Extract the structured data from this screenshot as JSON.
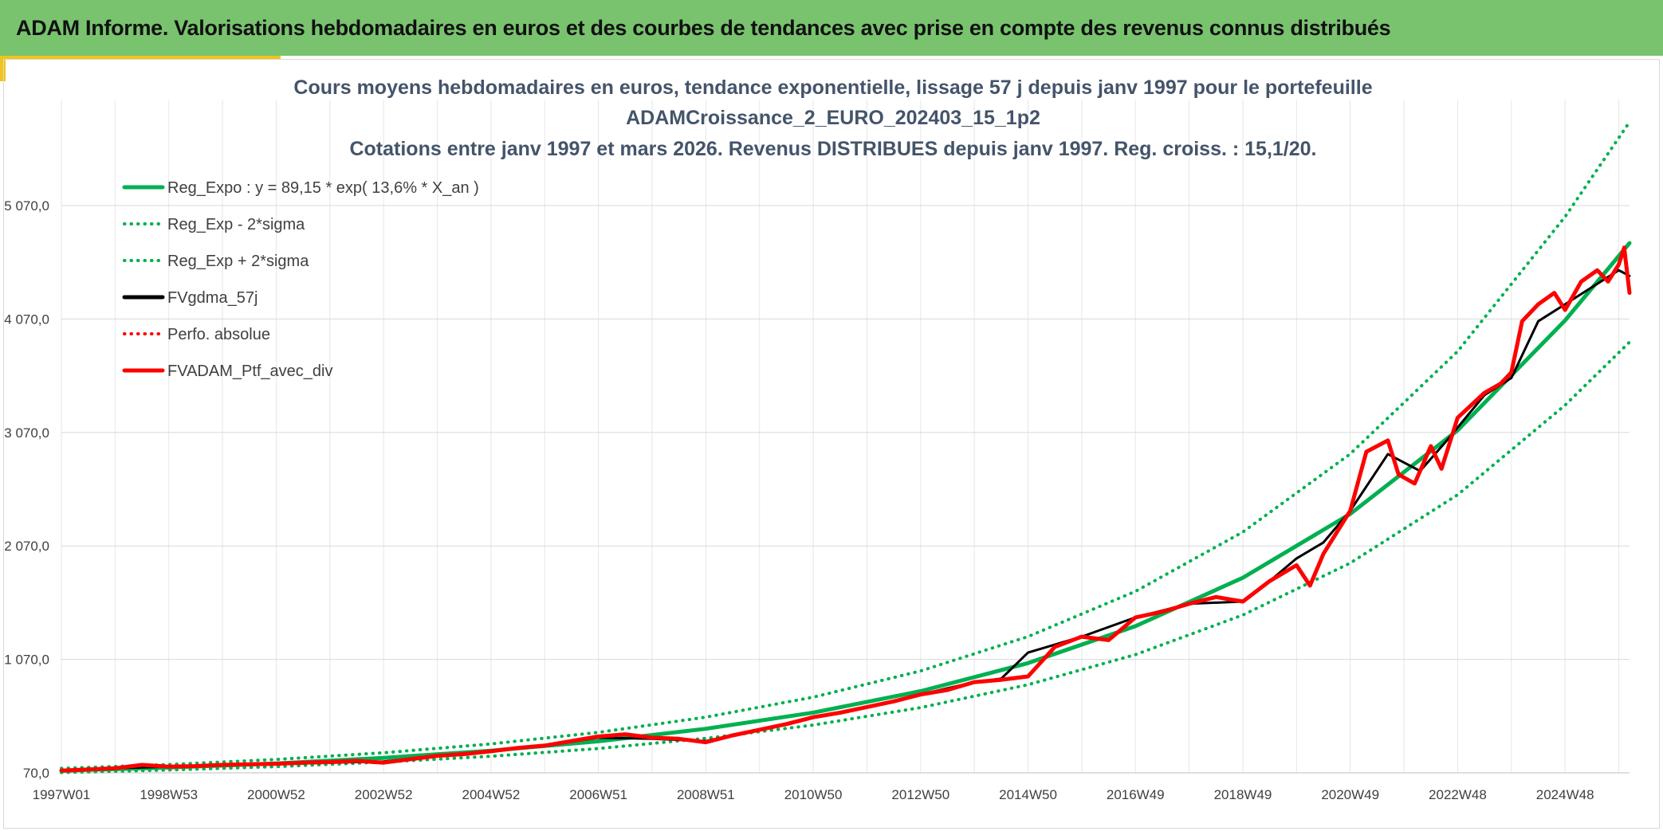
{
  "header": {
    "title": "ADAM Informe. Valorisations hebdomadaires en euros et des courbes de tendances avec prise en compte des revenus connus distribués"
  },
  "colors": {
    "banner": "#79c36f",
    "accent": "#f0c419",
    "reg_expo": "#00b050",
    "sigma": "#00b050",
    "fvgdma": "#000000",
    "perfo": "#ff0000",
    "ptf": "#ff0000"
  },
  "chart_data": {
    "type": "line",
    "title_lines": [
      "Cours moyens hebdomadaires en euros, tendance exponentielle, lissage 57 j depuis janv 1997 pour le portefeuille",
      "ADAMCroissance_2_EURO_202403_15_1p2",
      "Cotations entre janv 1997 et mars 2026. Revenus DISTRIBUES depuis janv 1997. Reg. croiss. : 15,1/20."
    ],
    "x_tick_labels": [
      "1997W01",
      "1998W53",
      "2000W52",
      "2002W52",
      "2004W52",
      "2006W51",
      "2008W51",
      "2010W50",
      "2012W50",
      "2014W50",
      "2016W49",
      "2018W49",
      "2020W49",
      "2022W48",
      "2024W48"
    ],
    "x_tick_years": [
      1997.0,
      1999.0,
      2001.0,
      2003.0,
      2005.0,
      2007.0,
      2009.0,
      2011.0,
      2013.0,
      2015.0,
      2017.0,
      2019.0,
      2021.0,
      2023.0,
      2025.0
    ],
    "xlim": [
      1997.0,
      2026.2
    ],
    "y_ticks": [
      70,
      1070,
      2070,
      3070,
      4070,
      5070
    ],
    "y_tick_labels": [
      "70,0",
      "1 070,0",
      "2 070,0",
      "3 070,0",
      "4 070,0",
      "5 070,0"
    ],
    "ylim": [
      70,
      5070
    ],
    "grid": true,
    "legend_position": "top-left",
    "series": [
      {
        "name": "Reg_Expo : y = 89,15 * exp( 13,6% *  X_an )",
        "style": "solid",
        "color": "#00b050",
        "x": [
          1997.0,
          1999.0,
          2001.0,
          2003.0,
          2005.0,
          2007.0,
          2009.0,
          2011.0,
          2013.0,
          2015.0,
          2017.0,
          2019.0,
          2021.0,
          2023.0,
          2025.0,
          2026.2
        ],
        "y": [
          89,
          117,
          153,
          202,
          265,
          348,
          458,
          601,
          790,
          1037,
          1363,
          1790,
          2352,
          3089,
          4058,
          4739
        ]
      },
      {
        "name": "Reg_Exp - 2*sigma",
        "style": "dotted",
        "color": "#00b050",
        "x": [
          1997.0,
          1999.0,
          2001.0,
          2003.0,
          2005.0,
          2007.0,
          2009.0,
          2011.0,
          2013.0,
          2015.0,
          2017.0,
          2019.0,
          2021.0,
          2023.0,
          2025.0,
          2026.2
        ],
        "y": [
          73,
          95,
          125,
          165,
          216,
          284,
          374,
          491,
          645,
          847,
          1112,
          1461,
          1919,
          2521,
          3311,
          3866
        ]
      },
      {
        "name": "Reg_Exp + 2*sigma",
        "style": "dotted",
        "color": "#00b050",
        "x": [
          1997.0,
          1999.0,
          2001.0,
          2003.0,
          2005.0,
          2007.0,
          2009.0,
          2011.0,
          2013.0,
          2015.0,
          2017.0,
          2019.0,
          2021.0,
          2023.0,
          2025.0,
          2026.2
        ],
        "y": [
          109,
          143,
          188,
          247,
          325,
          427,
          561,
          737,
          968,
          1271,
          1670,
          2193,
          2881,
          3785,
          4972,
          5806
        ]
      },
      {
        "name": "FVgdma_57j",
        "style": "solid",
        "color": "#000000",
        "x": [
          1997.0,
          1998.0,
          1999.0,
          2000.0,
          2001.0,
          2002.0,
          2003.0,
          2004.0,
          2005.0,
          2006.0,
          2007.0,
          2008.0,
          2009.0,
          2010.0,
          2011.0,
          2012.0,
          2013.0,
          2014.0,
          2014.5,
          2015.0,
          2016.0,
          2017.0,
          2018.0,
          2019.0,
          2019.5,
          2020.0,
          2020.5,
          2021.0,
          2021.7,
          2022.3,
          2022.8,
          2023.5,
          2024.0,
          2024.5,
          2025.0,
          2025.5,
          2026.0,
          2026.2
        ],
        "y": [
          90,
          110,
          125,
          140,
          145,
          160,
          170,
          220,
          260,
          310,
          380,
          370,
          350,
          450,
          560,
          650,
          760,
          870,
          900,
          1130,
          1270,
          1440,
          1560,
          1580,
          1760,
          1960,
          2100,
          2380,
          2880,
          2730,
          3000,
          3400,
          3550,
          4050,
          4200,
          4350,
          4500,
          4450
        ]
      },
      {
        "name": "Perfo. absolue",
        "style": "dotted",
        "color": "#ff0000",
        "x": [],
        "y": []
      },
      {
        "name": "FVADAM_Ptf_avec_div",
        "style": "solid",
        "color": "#ff0000",
        "x": [
          1997.0,
          1997.5,
          1998.0,
          1998.5,
          1999.0,
          1999.5,
          2000.0,
          2000.5,
          2001.0,
          2001.5,
          2002.0,
          2002.5,
          2003.0,
          2003.5,
          2004.0,
          2004.5,
          2005.0,
          2005.5,
          2006.0,
          2006.5,
          2007.0,
          2007.5,
          2008.0,
          2008.5,
          2009.0,
          2009.5,
          2010.0,
          2010.5,
          2011.0,
          2011.5,
          2012.0,
          2012.5,
          2013.0,
          2013.5,
          2014.0,
          2014.5,
          2015.0,
          2015.5,
          2016.0,
          2016.5,
          2017.0,
          2017.5,
          2018.0,
          2018.5,
          2019.0,
          2019.5,
          2020.0,
          2020.25,
          2020.5,
          2021.0,
          2021.3,
          2021.7,
          2021.9,
          2022.2,
          2022.5,
          2022.7,
          2023.0,
          2023.5,
          2023.8,
          2024.0,
          2024.2,
          2024.5,
          2024.8,
          2025.0,
          2025.3,
          2025.6,
          2025.8,
          2026.0,
          2026.1,
          2026.2
        ],
        "y": [
          90,
          100,
          110,
          140,
          125,
          130,
          140,
          145,
          150,
          160,
          165,
          175,
          160,
          190,
          220,
          235,
          260,
          290,
          310,
          350,
          390,
          410,
          380,
          370,
          340,
          400,
          450,
          500,
          560,
          600,
          650,
          700,
          760,
          800,
          870,
          890,
          920,
          1180,
          1270,
          1240,
          1440,
          1490,
          1560,
          1620,
          1580,
          1760,
          1900,
          1720,
          2000,
          2380,
          2900,
          3000,
          2700,
          2620,
          2950,
          2750,
          3200,
          3420,
          3500,
          3600,
          4050,
          4200,
          4300,
          4150,
          4400,
          4500,
          4400,
          4550,
          4700,
          4300
        ]
      }
    ]
  }
}
